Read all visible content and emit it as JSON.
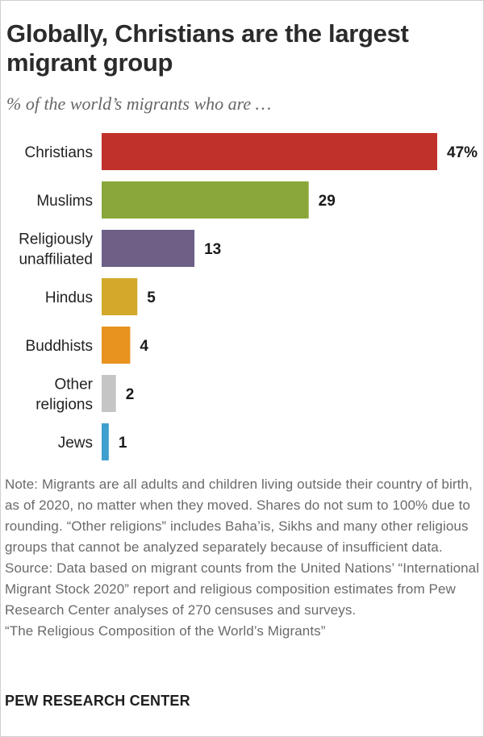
{
  "header": {
    "title": "Globally, Christians are the largest migrant group",
    "subtitle": "% of the world’s migrants who are …"
  },
  "chart_data": {
    "type": "bar",
    "orientation": "horizontal",
    "categories": [
      "Christians",
      "Muslims",
      "Religiously unaffiliated",
      "Hindus",
      "Buddhists",
      "Other religions",
      "Jews"
    ],
    "category_lines": [
      [
        "Christians"
      ],
      [
        "Muslims"
      ],
      [
        "Religiously",
        "unaffiliated"
      ],
      [
        "Hindus"
      ],
      [
        "Buddhists"
      ],
      [
        "Other",
        "religions"
      ],
      [
        "Jews"
      ]
    ],
    "values": [
      47,
      29,
      13,
      5,
      4,
      2,
      1
    ],
    "value_labels": [
      "47%",
      "29",
      "13",
      "5",
      "4",
      "2",
      "1"
    ],
    "colors": [
      "#c0312b",
      "#8aa83a",
      "#6e5f87",
      "#d2a92a",
      "#e8921f",
      "#c5c5c5",
      "#3f9fcf"
    ],
    "xlim": [
      0,
      47
    ],
    "grid": false,
    "legend": "none"
  },
  "footer": {
    "note": "Note: Migrants are all adults and children living outside their country of birth, as of 2020, no matter when they moved. Shares do not sum to 100% due to rounding. “Other religions” includes Baha’is, Sikhs and many other religious groups that cannot be analyzed separately because of insufficient data.",
    "source": "Source: Data based on migrant counts from the United Nations’ “International Migrant Stock 2020” report and religious composition estimates from Pew Research Center analyses of 270 censuses and surveys.",
    "report": "“The Religious Composition of the World’s Migrants”",
    "brand": "PEW RESEARCH CENTER"
  }
}
